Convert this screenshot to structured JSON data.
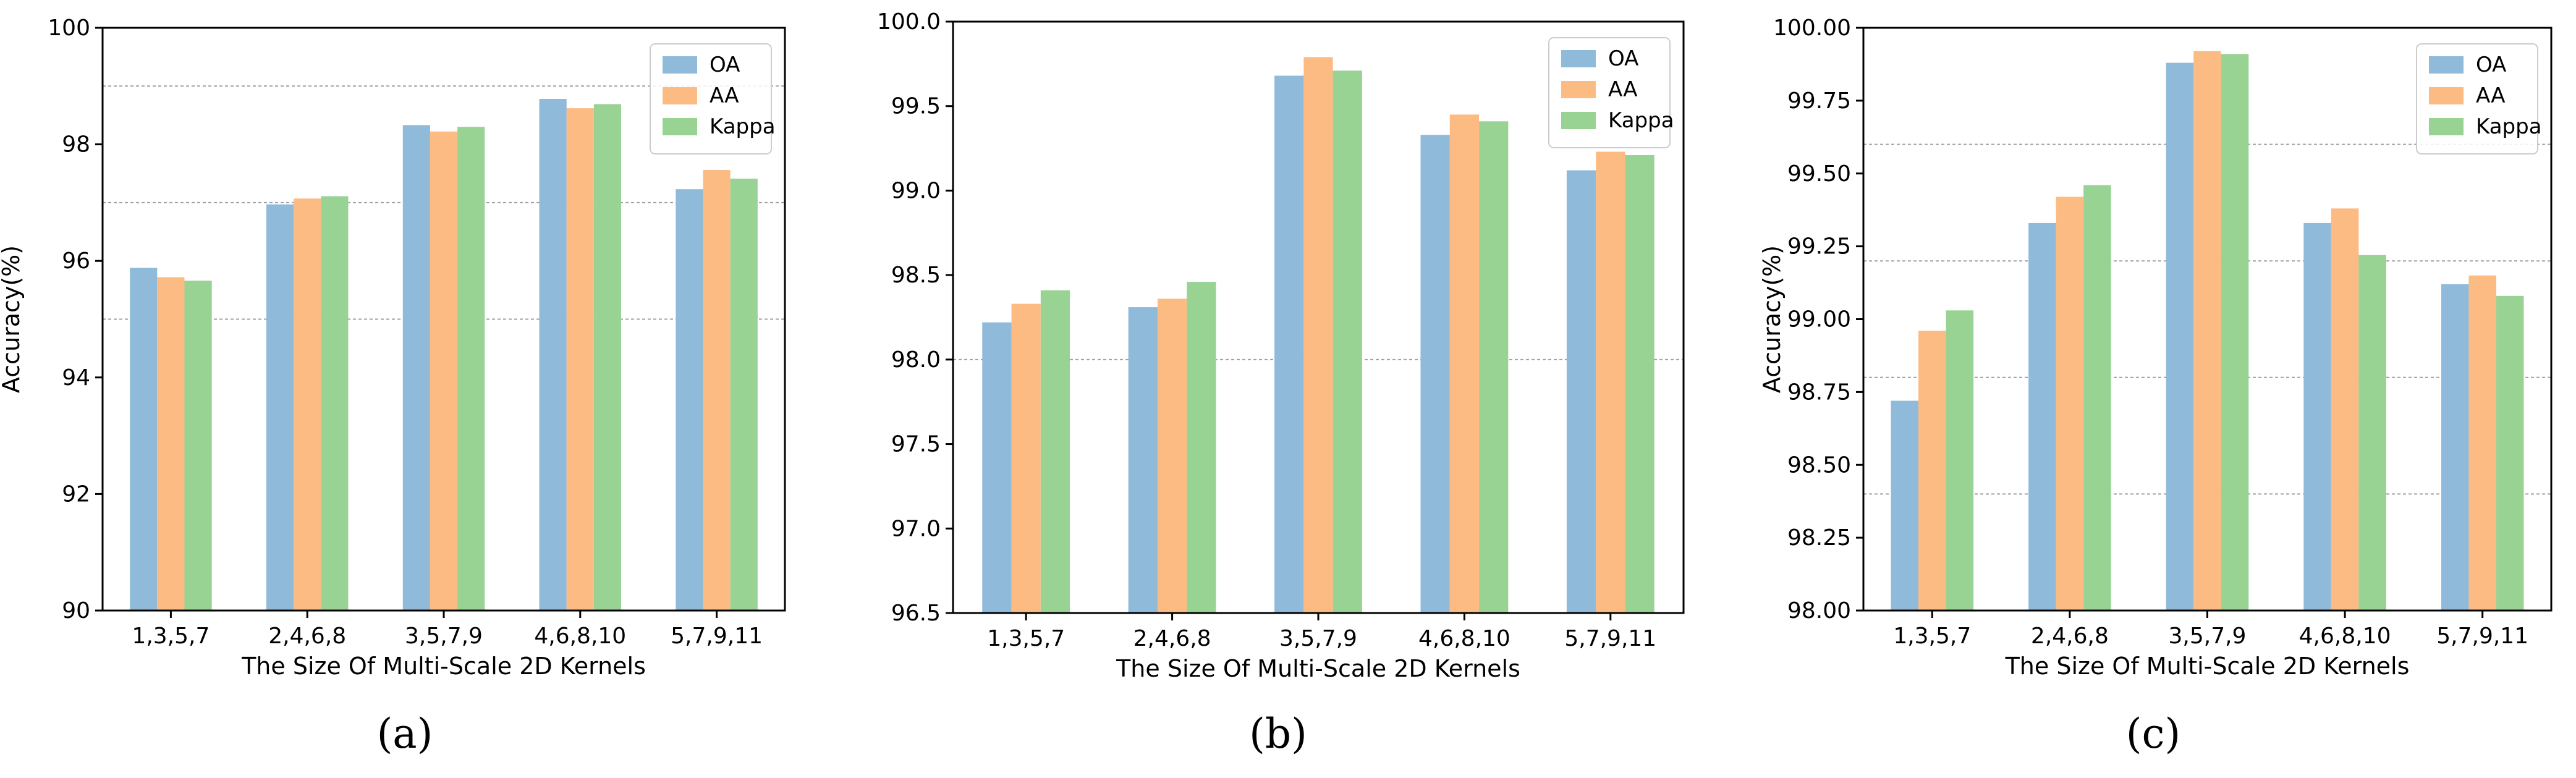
{
  "colors": {
    "OA": "#8fbad9",
    "AA": "#fdbb84",
    "Kappa": "#98d394",
    "grid": "#a0a0a0"
  },
  "chart_data": [
    {
      "type": "bar",
      "caption": "(a)",
      "categories": [
        "1,3,5,7",
        "2,4,6,8",
        "3,5,7,9",
        "4,6,8,10",
        "5,7,9,11"
      ],
      "series": [
        {
          "name": "OA",
          "values": [
            95.88,
            96.97,
            98.33,
            98.78,
            97.23
          ]
        },
        {
          "name": "AA",
          "values": [
            95.72,
            97.07,
            98.22,
            98.62,
            97.56
          ]
        },
        {
          "name": "Kappa",
          "values": [
            95.66,
            97.11,
            98.3,
            98.69,
            97.41
          ]
        }
      ],
      "xlabel": "The Size Of Multi-Scale 2D Kernels",
      "ylabel": "Accuracy(%)",
      "ylim": [
        90,
        100
      ],
      "yticks": [
        "90",
        "92",
        "94",
        "96",
        "98",
        "100"
      ],
      "ytick_values": [
        90,
        92,
        94,
        96,
        98,
        100
      ],
      "gridlines": [
        95,
        97,
        99
      ],
      "legend": "top-right"
    },
    {
      "type": "bar",
      "caption": "(b)",
      "categories": [
        "1,3,5,7",
        "2,4,6,8",
        "3,5,7,9",
        "4,6,8,10",
        "5,7,9,11"
      ],
      "series": [
        {
          "name": "OA",
          "values": [
            98.22,
            98.31,
            99.68,
            99.33,
            99.12
          ]
        },
        {
          "name": "AA",
          "values": [
            98.33,
            98.36,
            99.79,
            99.45,
            99.23
          ]
        },
        {
          "name": "Kappa",
          "values": [
            98.41,
            98.46,
            99.71,
            99.41,
            99.21
          ]
        }
      ],
      "xlabel": "The Size Of Multi-Scale 2D Kernels",
      "ylabel": "",
      "ylim": [
        96.5,
        100.0
      ],
      "yticks": [
        "96.5",
        "97.0",
        "97.5",
        "98.0",
        "98.5",
        "99.0",
        "99.5",
        "100.0"
      ],
      "ytick_values": [
        96.5,
        97.0,
        97.5,
        98.0,
        98.5,
        99.0,
        99.5,
        100.0
      ],
      "gridlines": [
        98.0
      ],
      "legend": "top-right"
    },
    {
      "type": "bar",
      "caption": "(c)",
      "categories": [
        "1,3,5,7",
        "2,4,6,8",
        "3,5,7,9",
        "4,6,8,10",
        "5,7,9,11"
      ],
      "series": [
        {
          "name": "OA",
          "values": [
            98.72,
            99.33,
            99.88,
            99.33,
            99.12
          ]
        },
        {
          "name": "AA",
          "values": [
            98.96,
            99.42,
            99.92,
            99.38,
            99.15
          ]
        },
        {
          "name": "Kappa",
          "values": [
            99.03,
            99.46,
            99.91,
            99.22,
            99.08
          ]
        }
      ],
      "xlabel": "The Size Of Multi-Scale 2D Kernels",
      "ylabel": "Accuracy(%)",
      "ylim": [
        98.0,
        100.0
      ],
      "yticks": [
        "98.00",
        "98.25",
        "98.50",
        "98.75",
        "99.00",
        "99.25",
        "99.50",
        "99.75",
        "100.00"
      ],
      "ytick_values": [
        98.0,
        98.25,
        98.5,
        98.75,
        99.0,
        99.25,
        99.5,
        99.75,
        100.0
      ],
      "gridlines": [
        98.4,
        98.8,
        99.2,
        99.6
      ],
      "legend": "top-right"
    }
  ]
}
